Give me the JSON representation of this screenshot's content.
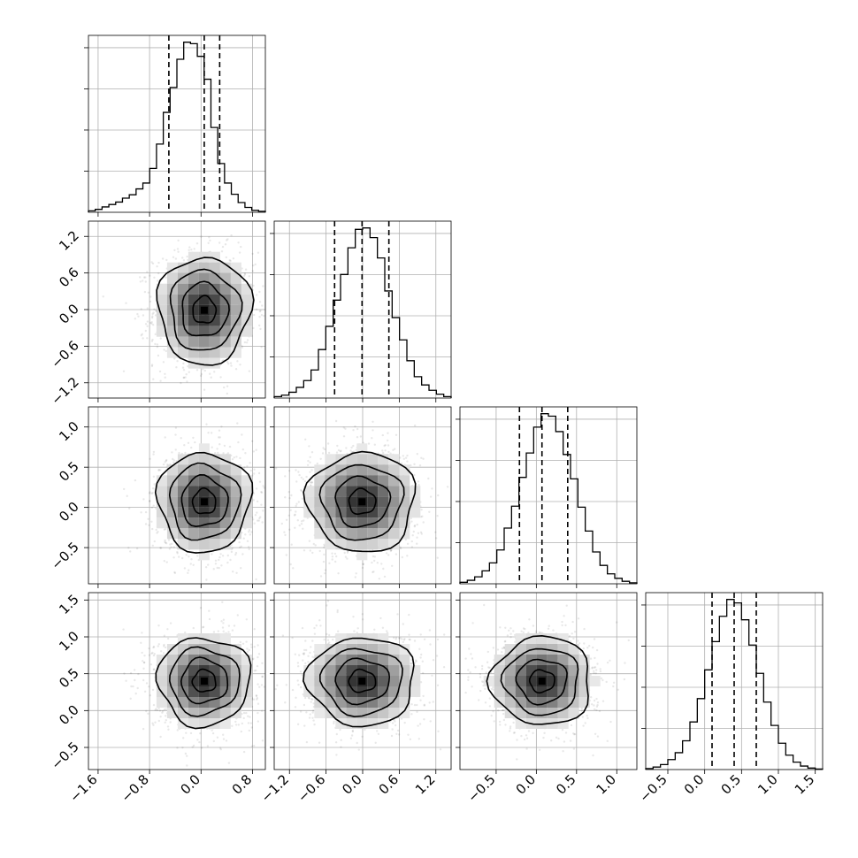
{
  "chart_data": {
    "type": "corner",
    "title": "",
    "parameters": [
      {
        "median": 0.05,
        "quantiles": [
          -0.5,
          0.05,
          0.29
        ],
        "spread": 0.36,
        "range": [
          -1.75,
          1.0
        ],
        "ticks": [
          -1.6,
          -0.8,
          0.0,
          0.8
        ],
        "tick_labels": [
          "−1.6",
          "−0.8",
          "0.0",
          "0.8"
        ],
        "hist_values": [
          0.3,
          0.6,
          1.1,
          1.6,
          2.1,
          2.9,
          3.6,
          4.8,
          6.0,
          9.0,
          14,
          20.5,
          25.6,
          31.4,
          34.9,
          34.6,
          32.0,
          27.3,
          17.4,
          10.0,
          6.0,
          3.7,
          2.0,
          1.0,
          0.4,
          0.2
        ]
      },
      {
        "median": -0.01,
        "quantiles": [
          -0.46,
          -0.01,
          0.43
        ],
        "spread": 0.44,
        "range": [
          -1.45,
          1.45
        ],
        "ticks": [
          -1.2,
          -0.6,
          0.0,
          0.6,
          1.2
        ],
        "tick_labels": [
          "−1.2",
          "−0.6",
          "0.0",
          "0.6",
          "1.2"
        ],
        "hist_values": [
          0.3,
          0.6,
          1.2,
          2.2,
          3.6,
          5.8,
          10,
          14.8,
          20.2,
          25.5,
          31,
          34.8,
          35.1,
          33.1,
          28.9,
          22.1,
          16.6,
          12.0,
          7.7,
          4.4,
          2.7,
          1.6,
          0.8,
          0.3
        ]
      },
      {
        "median": 0.07,
        "quantiles": [
          -0.21,
          0.07,
          0.39
        ],
        "spread": 0.31,
        "range": [
          -0.95,
          1.25
        ],
        "ticks": [
          -0.5,
          0.0,
          0.5,
          1.0
        ],
        "tick_labels": [
          "−0.5",
          "0.0",
          "0.5",
          "1.0"
        ],
        "hist_values": [
          0.3,
          0.7,
          1.4,
          2.6,
          4.2,
          6.8,
          11.2,
          15.6,
          21.4,
          26.3,
          31.5,
          34.2,
          33.7,
          30.6,
          26.0,
          21.1,
          15.4,
          10.6,
          6.4,
          3.7,
          2.0,
          1.1,
          0.5,
          0.2
        ]
      },
      {
        "median": 0.4,
        "quantiles": [
          0.1,
          0.4,
          0.7
        ],
        "spread": 0.3,
        "range": [
          -0.8,
          1.6
        ],
        "ticks": [
          -0.5,
          0.0,
          0.5,
          1.0,
          1.5
        ],
        "tick_labels": [
          "−0.5",
          "0.0",
          "0.5",
          "1.0",
          "1.5"
        ],
        "hist_values": [
          0.2,
          0.5,
          1.0,
          2.0,
          3.4,
          5.8,
          9.6,
          14.3,
          20.1,
          25.8,
          30.9,
          34.3,
          33.6,
          30.2,
          25.1,
          19.4,
          13.6,
          8.9,
          5.3,
          2.9,
          1.5,
          0.7,
          0.3,
          0.1
        ]
      }
    ],
    "off_diagonal_y": [
      {
        "row": 1,
        "ticks": [
          -1.2,
          -0.6,
          0.0,
          0.6,
          1.2
        ],
        "tick_labels": [
          "−1.2",
          "−0.6",
          "0.0",
          "0.6",
          "1.2"
        ]
      },
      {
        "row": 2,
        "ticks": [
          -0.5,
          0.0,
          0.5,
          1.0
        ],
        "tick_labels": [
          "−0.5",
          "0.0",
          "0.5",
          "1.0"
        ]
      },
      {
        "row": 3,
        "ticks": [
          -0.5,
          0.0,
          0.5,
          1.0,
          1.5
        ],
        "tick_labels": [
          "−0.5",
          "0.0",
          "0.5",
          "1.0",
          "1.5"
        ]
      }
    ],
    "contour_levels_sigma": [
      0.5,
      1.0,
      1.5,
      2.0
    ],
    "scatter_points_per_panel": 1400,
    "grid": true,
    "line_color": "#000000",
    "scatter_color": "#000000"
  }
}
